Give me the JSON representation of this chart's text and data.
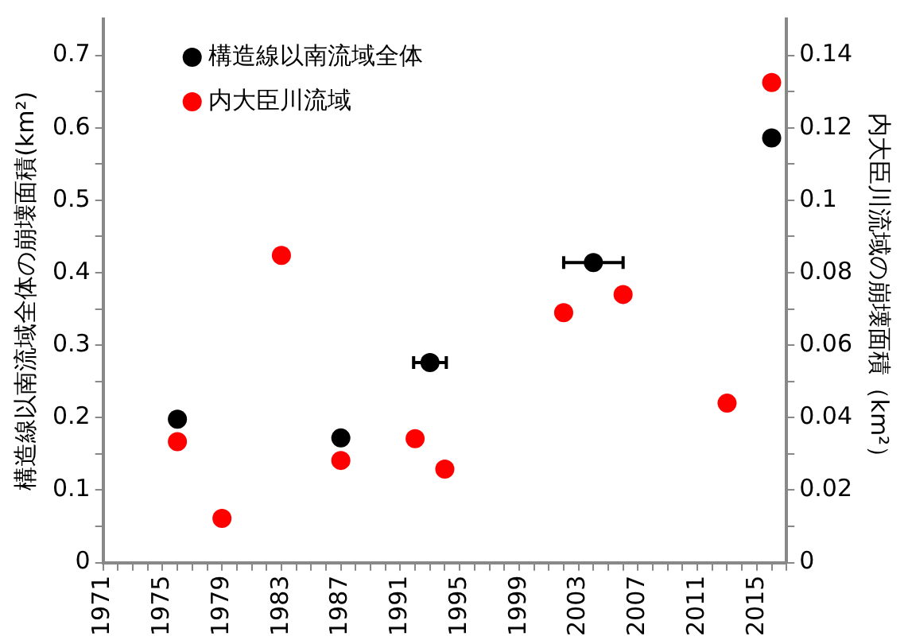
{
  "chart_data": {
    "type": "scatter",
    "ylabel": "構造線以南流域全体の崩壊面積(km²)",
    "y2label": "内大臣川流域の崩壊面積（km²）",
    "series": [
      {
        "name": "構造線以南流域全体",
        "color": "#000000",
        "x": [
          1976,
          1987,
          1993,
          2004,
          2016
        ],
        "values": [
          0.198,
          0.172,
          0.276,
          0.414,
          0.586
        ],
        "xerrors": [
          null,
          null,
          1.1,
          2,
          null
        ]
      },
      {
        "name": "内大臣川流域",
        "color": "#ff0000",
        "axis": "y2",
        "x": [
          1976,
          1979,
          1983,
          1987,
          1992,
          1994,
          2002,
          2006,
          2013,
          2016
        ],
        "values": [
          0.0334,
          0.0122,
          0.0848,
          0.0282,
          0.0342,
          0.0258,
          0.069,
          0.074,
          0.044,
          0.1325
        ]
      }
    ],
    "xlim": [
      1971,
      2017
    ],
    "xticks": [
      1971,
      {
        "value": 1972,
        "label": null
      },
      {
        "value": 1973,
        "label": null
      },
      {
        "value": 1974,
        "label": null
      },
      1975,
      {
        "value": 1976,
        "label": null
      },
      {
        "value": 1977,
        "label": null
      },
      {
        "value": 1978,
        "label": null
      },
      1979,
      {
        "value": 1980,
        "label": null
      },
      {
        "value": 1981,
        "label": null
      },
      {
        "value": 1982,
        "label": null
      },
      1983,
      {
        "value": 1984,
        "label": null
      },
      {
        "value": 1985,
        "label": null
      },
      {
        "value": 1986,
        "label": null
      },
      1987,
      {
        "value": 1988,
        "label": null
      },
      {
        "value": 1989,
        "label": null
      },
      {
        "value": 1990,
        "label": null
      },
      1991,
      {
        "value": 1992,
        "label": null
      },
      {
        "value": 1993,
        "label": null
      },
      {
        "value": 1994,
        "label": null
      },
      1995,
      {
        "value": 1996,
        "label": null
      },
      {
        "value": 1997,
        "label": null
      },
      {
        "value": 1998,
        "label": null
      },
      1999,
      {
        "value": 2000,
        "label": null
      },
      {
        "value": 2001,
        "label": null
      },
      {
        "value": 2002,
        "label": null
      },
      2003,
      {
        "value": 2004,
        "label": null
      },
      {
        "value": 2005,
        "label": null
      },
      {
        "value": 2006,
        "label": null
      },
      2007,
      {
        "value": 2008,
        "label": null
      },
      {
        "value": 2009,
        "label": null
      },
      {
        "value": 2010,
        "label": null
      },
      2011,
      {
        "value": 2012,
        "label": null
      },
      {
        "value": 2013,
        "label": null
      },
      {
        "value": 2014,
        "label": null
      },
      2015,
      {
        "value": 2016,
        "label": null
      },
      {
        "value": 2017,
        "label": null
      }
    ],
    "ylim": [
      0,
      0.75
    ],
    "yticks": [
      0,
      {
        "value": 0.05,
        "label": null
      },
      0.1,
      {
        "value": 0.15,
        "label": null
      },
      0.2,
      {
        "value": 0.25,
        "label": null
      },
      0.3,
      {
        "value": 0.35,
        "label": null
      },
      0.4,
      {
        "value": 0.45,
        "label": null
      },
      0.5,
      {
        "value": 0.55,
        "label": null
      },
      0.6,
      {
        "value": 0.65,
        "label": null
      },
      0.7
    ],
    "y2lim": [
      0,
      0.15
    ],
    "y2ticks": [
      0,
      {
        "value": 0.01,
        "label": null
      },
      0.02,
      {
        "value": 0.03,
        "label": null
      },
      0.04,
      {
        "value": 0.05,
        "label": null
      },
      0.06,
      {
        "value": 0.07,
        "label": null
      },
      0.08,
      {
        "value": 0.09,
        "label": null
      },
      0.1,
      {
        "value": 0.11,
        "label": null
      },
      0.12,
      {
        "value": 0.13,
        "label": null
      },
      0.14
    ],
    "grid": false,
    "legend": "top left",
    "marker": "circle"
  }
}
